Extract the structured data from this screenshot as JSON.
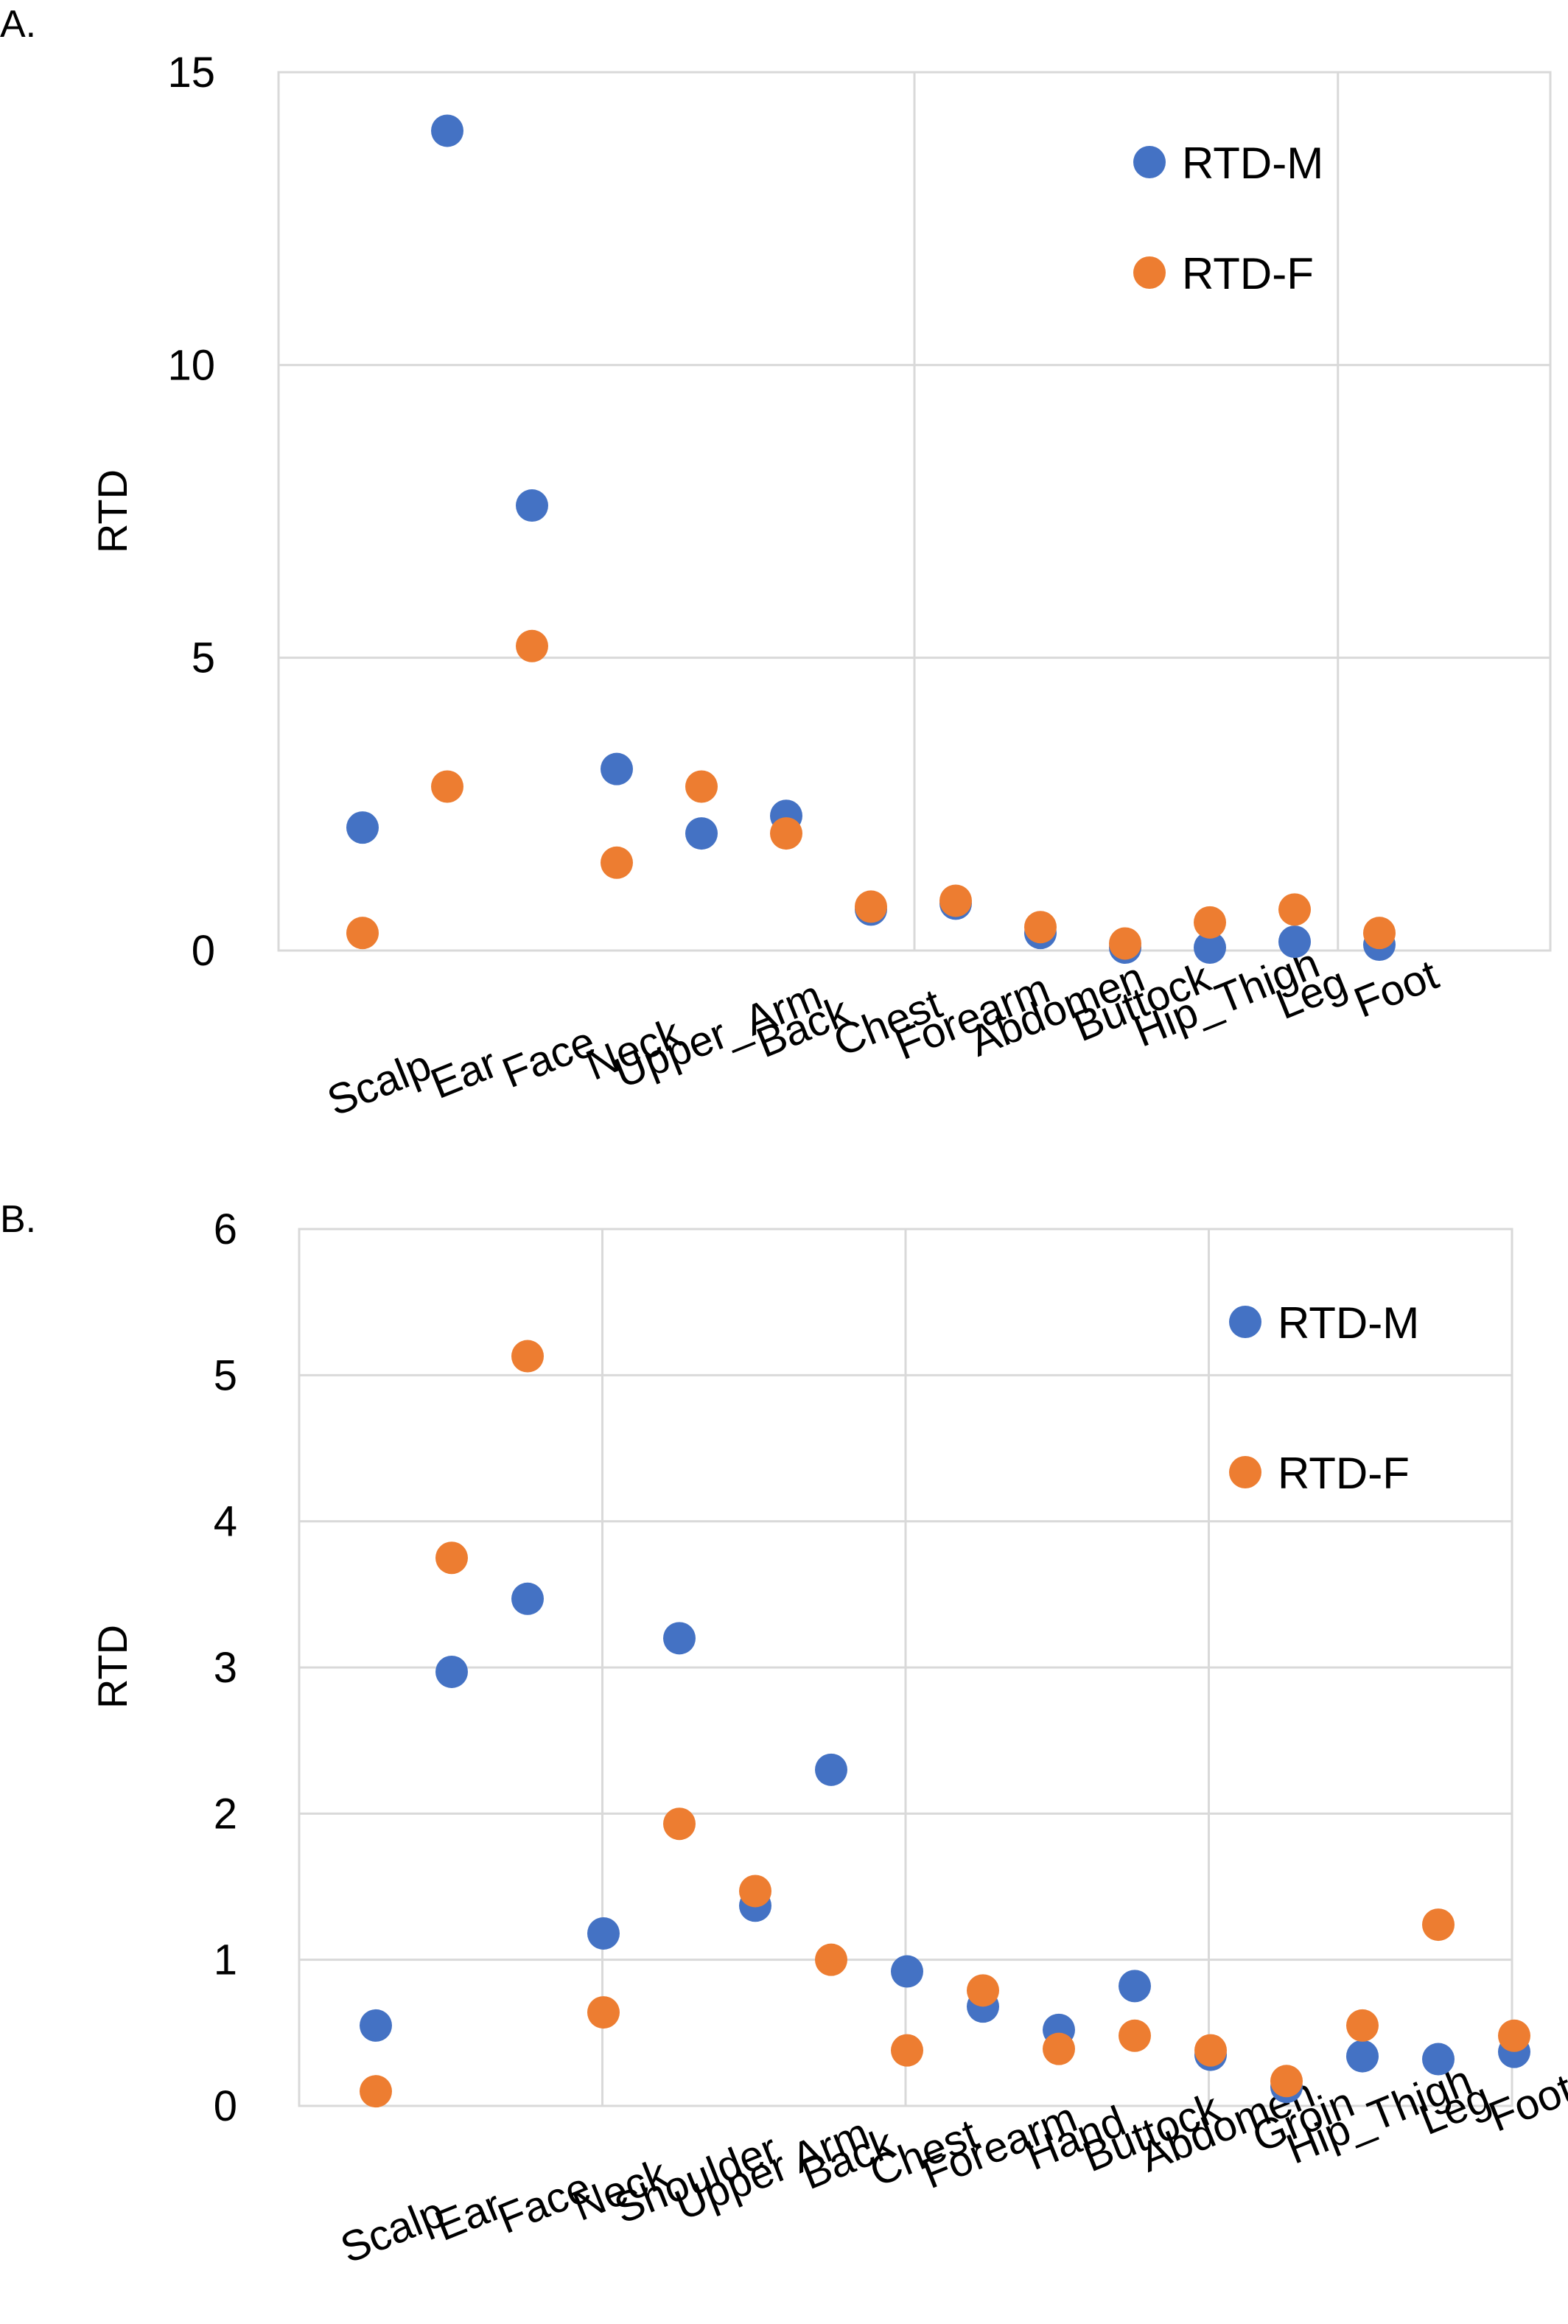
{
  "colors": {
    "male": "#4472c4",
    "female": "#ed7d31"
  },
  "chart_data": [
    {
      "type": "scatter",
      "panel_label": "A.",
      "ylabel": "RTD",
      "xlabel": "",
      "ylim": [
        0,
        15
      ],
      "yticks": [
        "0",
        "5",
        "10",
        "15"
      ],
      "grid": true,
      "legend_position": "top-right",
      "categories": [
        "Scalp",
        "Ear",
        "Face",
        "Neck",
        "Upper_Arm",
        "Back",
        "Chest",
        "Forearm",
        "Abdomen",
        "Buttock",
        "Hip_Thigh",
        "Leg",
        "Foot"
      ],
      "series": [
        {
          "name": "RTD-M",
          "values": [
            2.1,
            14.0,
            7.6,
            3.1,
            2.0,
            2.3,
            0.7,
            0.8,
            0.3,
            0.05,
            0.05,
            0.15,
            0.1
          ]
        },
        {
          "name": "RTD-F",
          "values": [
            0.3,
            2.8,
            5.2,
            1.5,
            2.8,
            2.0,
            0.75,
            0.85,
            0.4,
            0.12,
            0.48,
            0.7,
            0.3
          ]
        }
      ]
    },
    {
      "type": "scatter",
      "panel_label": "B.",
      "ylabel": "RTD",
      "xlabel": "",
      "ylim": [
        0,
        6
      ],
      "yticks": [
        "0",
        "1",
        "2",
        "3",
        "4",
        "5",
        "6"
      ],
      "grid": true,
      "legend_position": "top-right",
      "categories": [
        "Scalp",
        "Ear",
        "Face",
        "Neck",
        "Shoulder",
        "Upper Arm",
        "Back",
        "Chest",
        "Forearm",
        "Hand",
        "Buttock",
        "Abdomen",
        "Groin",
        "Hip_Thigh",
        "Leg",
        "Foot"
      ],
      "series": [
        {
          "name": "RTD-M",
          "values": [
            0.55,
            2.97,
            3.47,
            1.18,
            3.2,
            1.37,
            2.3,
            0.92,
            0.68,
            0.52,
            0.82,
            0.35,
            0.13,
            0.34,
            0.32,
            0.37
          ]
        },
        {
          "name": "RTD-F",
          "values": [
            0.1,
            3.75,
            5.13,
            0.64,
            1.93,
            1.47,
            1.0,
            0.38,
            0.79,
            0.39,
            0.48,
            0.38,
            0.17,
            0.55,
            1.24,
            0.48
          ]
        }
      ]
    }
  ]
}
